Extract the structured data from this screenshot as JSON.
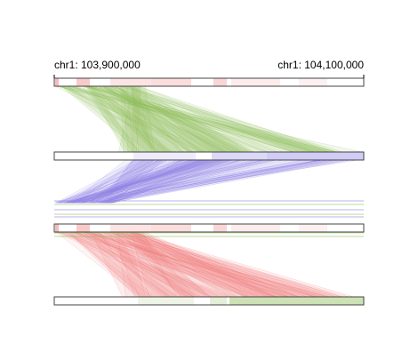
{
  "region": {
    "start_label": "chr1: 103,900,000",
    "end_label": "chr1: 104,100,000"
  },
  "colors": {
    "green": "#8fbf5a",
    "purple": "#8c7fe6",
    "red": "#f27c7c",
    "pink_block": "#f6b3b3",
    "track_border": "#444444"
  },
  "diagram": {
    "tracks": [
      {
        "id": "track-1"
      },
      {
        "id": "track-2"
      },
      {
        "id": "track-3"
      },
      {
        "id": "track-4"
      }
    ],
    "bands": [
      {
        "from": "track-1",
        "to": "track-2",
        "color": "green"
      },
      {
        "from": "track-2",
        "to": "track-3",
        "color": "purple"
      },
      {
        "from": "track-3",
        "to": "track-4",
        "color": "red"
      }
    ]
  }
}
